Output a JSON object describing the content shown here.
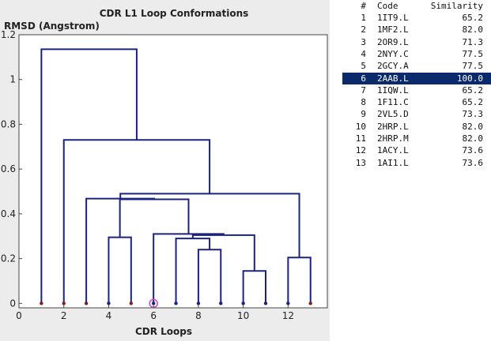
{
  "chart_data": {
    "type": "dendrogram",
    "title": "CDR L1 Loop Conformations",
    "xlabel": "CDR Loops",
    "ylabel": "RMSD (Angstrom)",
    "xlim": [
      0,
      13.75
    ],
    "ylim": [
      -0.02,
      1.2
    ],
    "x_ticks": [
      0,
      2,
      4,
      6,
      8,
      10,
      12
    ],
    "y_ticks": [
      0,
      0.2,
      0.4,
      0.6,
      0.8,
      1,
      1.2
    ],
    "y_tick_labels": [
      "0",
      "0.2",
      "0.4",
      "0.6",
      "0.8",
      "1",
      "1.2"
    ],
    "leaves": [
      {
        "x": 1,
        "color": "#8b1a1a"
      },
      {
        "x": 2,
        "color": "#8b1a1a"
      },
      {
        "x": 3,
        "color": "#8b1a1a"
      },
      {
        "x": 4,
        "color": "#1a237e"
      },
      {
        "x": 5,
        "color": "#8b1a1a"
      },
      {
        "x": 6,
        "color": "#1a237e",
        "highlighted": true
      },
      {
        "x": 7,
        "color": "#1a237e"
      },
      {
        "x": 8,
        "color": "#1a237e"
      },
      {
        "x": 9,
        "color": "#1a237e"
      },
      {
        "x": 10,
        "color": "#1a237e"
      },
      {
        "x": 11,
        "color": "#1a237e"
      },
      {
        "x": 12,
        "color": "#1a237e"
      },
      {
        "x": 13,
        "color": "#8b1a1a"
      }
    ],
    "merges": [
      {
        "x1": 4,
        "y1": 0,
        "x2": 5,
        "y2": 0,
        "height": 0.295
      },
      {
        "x1": 8,
        "y1": 0,
        "x2": 9,
        "y2": 0,
        "height": 0.24
      },
      {
        "x1": 10,
        "y1": 0,
        "x2": 11,
        "y2": 0,
        "height": 0.145
      },
      {
        "x1": 12,
        "y1": 0,
        "x2": 13,
        "y2": 0,
        "height": 0.205
      },
      {
        "x1": 7,
        "y1": 0,
        "x2": 8.5,
        "y2": 0.24,
        "height": 0.29
      },
      {
        "x1": 7.75,
        "y1": 0.29,
        "x2": 10.5,
        "y2": 0.145,
        "height": 0.305
      },
      {
        "x1": 6,
        "y1": 0,
        "x2": 9.125,
        "y2": 0.305,
        "height": 0.31
      },
      {
        "x1": 4.5,
        "y1": 0.295,
        "x2": 7.5625,
        "y2": 0.31,
        "height": 0.465
      },
      {
        "x1": 3,
        "y1": 0,
        "x2": 6.03,
        "y2": 0.465,
        "height": 0.468
      },
      {
        "x1": 4.52,
        "y1": 0.468,
        "x2": 12.5,
        "y2": 0.205,
        "height": 0.49
      },
      {
        "x1": 2,
        "y1": 0,
        "x2": 8.5,
        "y2": 0.49,
        "height": 0.73
      },
      {
        "x1": 1,
        "y1": 0,
        "x2": 5.25,
        "y2": 0.73,
        "height": 1.135
      }
    ],
    "line_color": "#1a237e",
    "highlight_color": "#cc44cc"
  },
  "table": {
    "headers": {
      "num": "#",
      "code": "Code",
      "sim": "Similarity"
    },
    "selected_index": 5,
    "rows": [
      {
        "num": "1",
        "code": "1IT9.L",
        "sim": "65.2"
      },
      {
        "num": "2",
        "code": "1MF2.L",
        "sim": "82.0"
      },
      {
        "num": "3",
        "code": "2OR9.L",
        "sim": "71.3"
      },
      {
        "num": "4",
        "code": "2NYY.C",
        "sim": "77.5"
      },
      {
        "num": "5",
        "code": "2GCY.A",
        "sim": "77.5"
      },
      {
        "num": "6",
        "code": "2AAB.L",
        "sim": "100.0"
      },
      {
        "num": "7",
        "code": "1IQW.L",
        "sim": "65.2"
      },
      {
        "num": "8",
        "code": "1F11.C",
        "sim": "65.2"
      },
      {
        "num": "9",
        "code": "2VL5.D",
        "sim": "73.3"
      },
      {
        "num": "10",
        "code": "2HRP.L",
        "sim": "82.0"
      },
      {
        "num": "11",
        "code": "2HRP.M",
        "sim": "82.0"
      },
      {
        "num": "12",
        "code": "1ACY.L",
        "sim": "73.6"
      },
      {
        "num": "13",
        "code": "1AI1.L",
        "sim": "73.6"
      }
    ]
  }
}
